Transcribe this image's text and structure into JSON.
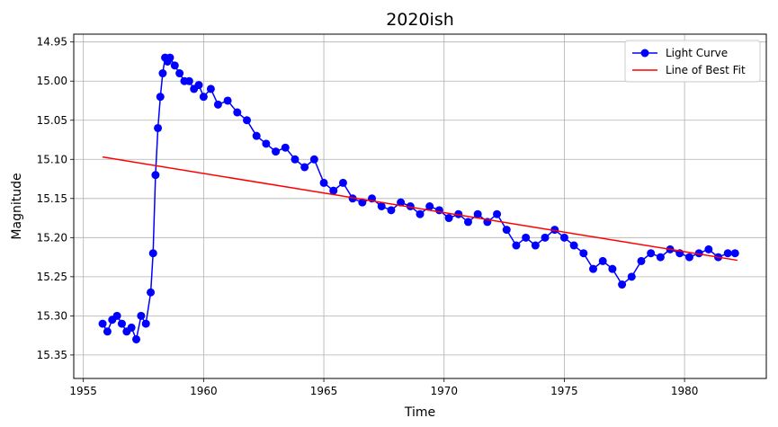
{
  "chart_data": {
    "type": "line",
    "title": "2020ish",
    "xlabel": "Time",
    "ylabel": "Magnitude",
    "xlim": [
      1954.6,
      1983.4
    ],
    "ylim": [
      15.38,
      14.94
    ],
    "y_inverted": true,
    "xticks": [
      1955,
      1960,
      1965,
      1970,
      1975,
      1980
    ],
    "yticks": [
      14.95,
      15.0,
      15.05,
      15.1,
      15.15,
      15.2,
      15.25,
      15.3,
      15.35
    ],
    "xtick_labels": [
      "1955",
      "1960",
      "1965",
      "1970",
      "1975",
      "1980"
    ],
    "ytick_labels": [
      "14.95",
      "15.00",
      "15.05",
      "15.10",
      "15.15",
      "15.20",
      "15.25",
      "15.30",
      "15.35"
    ],
    "grid": true,
    "legend_position": "top-right",
    "series": [
      {
        "name": "Light Curve",
        "color": "#0000ff",
        "marker": "circle",
        "x": [
          1955.8,
          1956.0,
          1956.2,
          1956.4,
          1956.6,
          1956.8,
          1957.0,
          1957.2,
          1957.4,
          1957.6,
          1957.8,
          1957.9,
          1958.0,
          1958.1,
          1958.2,
          1958.3,
          1958.4,
          1958.5,
          1958.6,
          1958.8,
          1959.0,
          1959.2,
          1959.4,
          1959.6,
          1959.8,
          1960.0,
          1960.3,
          1960.6,
          1961.0,
          1961.4,
          1961.8,
          1962.2,
          1962.6,
          1963.0,
          1963.4,
          1963.8,
          1964.2,
          1964.6,
          1965.0,
          1965.4,
          1965.8,
          1966.2,
          1966.6,
          1967.0,
          1967.4,
          1967.8,
          1968.2,
          1968.6,
          1969.0,
          1969.4,
          1969.8,
          1970.2,
          1970.6,
          1971.0,
          1971.4,
          1971.8,
          1972.2,
          1972.6,
          1973.0,
          1973.4,
          1973.8,
          1974.2,
          1974.6,
          1975.0,
          1975.4,
          1975.8,
          1976.2,
          1976.6,
          1977.0,
          1977.4,
          1977.8,
          1978.2,
          1978.6,
          1979.0,
          1979.4,
          1979.8,
          1980.2,
          1980.6,
          1981.0,
          1981.4,
          1981.8,
          1982.1
        ],
        "y": [
          15.31,
          15.32,
          15.305,
          15.3,
          15.31,
          15.32,
          15.315,
          15.33,
          15.3,
          15.31,
          15.27,
          15.22,
          15.12,
          15.06,
          15.02,
          14.99,
          14.97,
          14.975,
          14.97,
          14.98,
          14.99,
          15.0,
          15.0,
          15.01,
          15.005,
          15.02,
          15.01,
          15.03,
          15.025,
          15.04,
          15.05,
          15.07,
          15.08,
          15.09,
          15.085,
          15.1,
          15.11,
          15.1,
          15.13,
          15.14,
          15.13,
          15.15,
          15.155,
          15.15,
          15.16,
          15.165,
          15.155,
          15.16,
          15.17,
          15.16,
          15.165,
          15.175,
          15.17,
          15.18,
          15.17,
          15.18,
          15.17,
          15.19,
          15.21,
          15.2,
          15.21,
          15.2,
          15.19,
          15.2,
          15.21,
          15.22,
          15.24,
          15.23,
          15.24,
          15.26,
          15.25,
          15.23,
          15.22,
          15.225,
          15.215,
          15.22,
          15.225,
          15.22,
          15.215,
          15.225,
          15.22,
          15.22
        ]
      },
      {
        "name": "Line of Best Fit",
        "color": "#ff0000",
        "x": [
          1955.8,
          1982.2
        ],
        "y": [
          15.097,
          15.229
        ]
      }
    ]
  }
}
